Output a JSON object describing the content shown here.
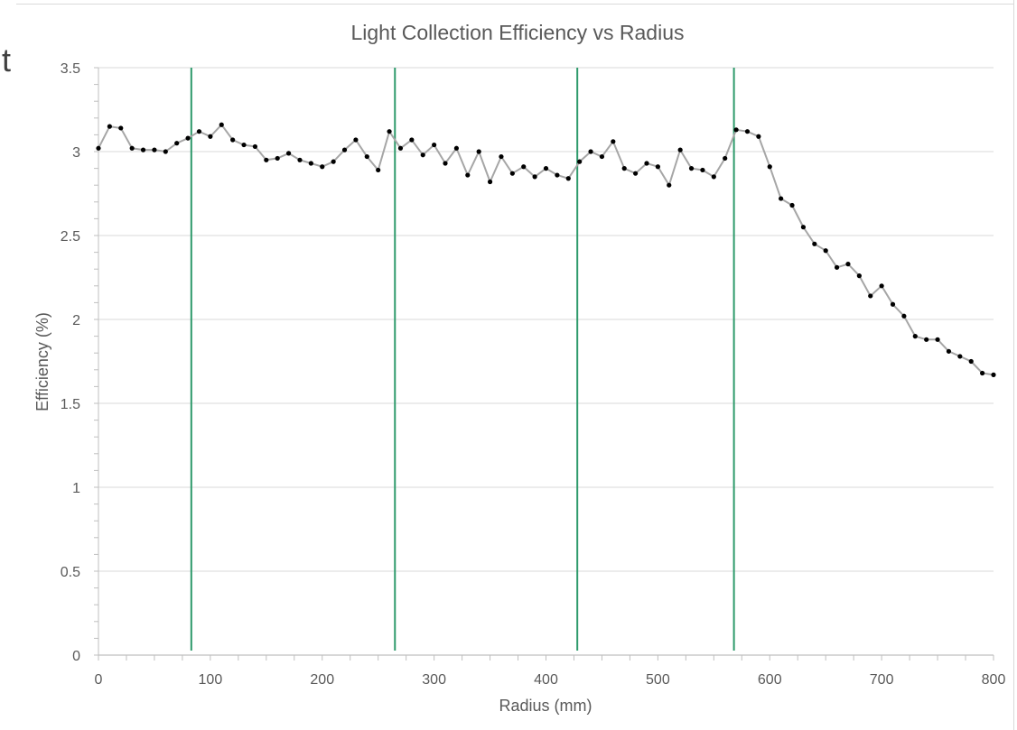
{
  "fragment_text": "t",
  "colors": {
    "series_line": "#a6a6a6",
    "markers": "#000000",
    "reference_lines": "#2e9a6b",
    "grid": "#d9d9d9",
    "axis": "#bfbfbf",
    "text": "#595959"
  },
  "chart_data": {
    "type": "line",
    "title": "Light Collection Efficiency vs Radius",
    "xlabel": "Radius (mm)",
    "ylabel": "Efficiency (%)",
    "xlim": [
      0,
      800
    ],
    "ylim": [
      0,
      3.5
    ],
    "xticks": [
      0,
      100,
      200,
      300,
      400,
      500,
      600,
      700,
      800
    ],
    "yticks": [
      0,
      0.5,
      1,
      1.5,
      2,
      2.5,
      3,
      3.5
    ],
    "xtick_labels": [
      "0",
      "100",
      "200",
      "300",
      "400",
      "500",
      "600",
      "700",
      "800"
    ],
    "ytick_labels": [
      "0",
      "0.5",
      "1",
      "1.5",
      "2",
      "2.5",
      "3",
      "3.5"
    ],
    "grid": "horizontal",
    "markers": true,
    "series": [
      {
        "x": [
          0,
          10,
          20,
          30,
          40,
          50,
          60,
          70,
          80,
          90,
          100,
          110,
          120,
          130,
          140,
          150,
          160,
          170,
          180,
          190,
          200,
          210,
          220,
          230,
          240,
          250,
          260,
          270,
          280,
          290,
          300,
          310,
          320,
          330,
          340,
          350,
          360,
          370,
          380,
          390,
          400,
          410,
          420,
          430,
          440,
          450,
          460,
          470,
          480,
          490,
          500,
          510,
          520,
          530,
          540,
          550,
          560,
          570,
          580,
          590,
          600,
          610,
          620,
          630,
          640,
          650,
          660,
          670,
          680,
          690,
          700,
          710,
          720,
          730,
          740,
          750,
          760,
          770,
          780,
          790,
          800
        ],
        "y": [
          3.02,
          3.15,
          3.14,
          3.02,
          3.01,
          3.01,
          3.0,
          3.05,
          3.08,
          3.12,
          3.09,
          3.16,
          3.07,
          3.04,
          3.03,
          2.95,
          2.96,
          2.99,
          2.95,
          2.93,
          2.91,
          2.94,
          3.01,
          3.07,
          2.97,
          2.89,
          3.12,
          3.02,
          3.07,
          2.98,
          3.04,
          2.93,
          3.02,
          2.86,
          3.0,
          2.82,
          2.97,
          2.87,
          2.91,
          2.85,
          2.9,
          2.86,
          2.84,
          2.94,
          3.0,
          2.97,
          3.06,
          2.9,
          2.87,
          2.93,
          2.91,
          2.8,
          3.01,
          2.9,
          2.89,
          2.85,
          2.96,
          3.13,
          3.12,
          3.09,
          2.91,
          2.72,
          2.68,
          2.55,
          2.45,
          2.41,
          2.31,
          2.33,
          2.26,
          2.14,
          2.2,
          2.09,
          2.02,
          1.9,
          1.88,
          1.88,
          1.81,
          1.78,
          1.75,
          1.68,
          1.67
        ]
      }
    ],
    "reference_lines_x": [
      83,
      265,
      428,
      568
    ]
  }
}
